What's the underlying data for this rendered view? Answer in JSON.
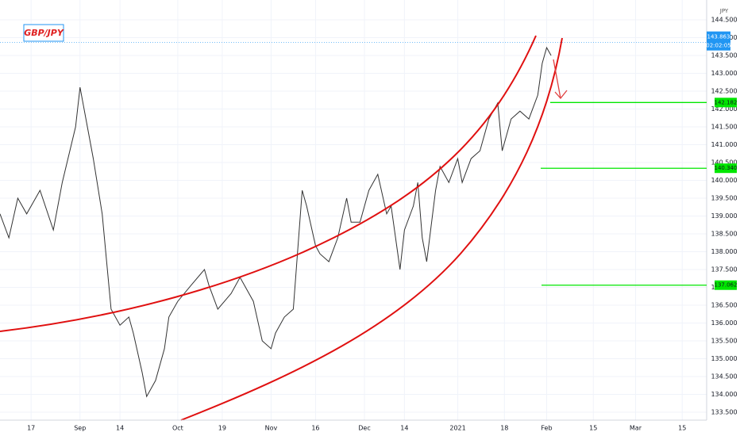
{
  "chart_data": {
    "type": "line",
    "title": "GBP/JPY",
    "currency": "JPY",
    "xlim": [
      0,
      159
    ],
    "xticks": [
      {
        "value": 7,
        "label": "17"
      },
      {
        "value": 18,
        "label": "Sep"
      },
      {
        "value": 27,
        "label": "14"
      },
      {
        "value": 40,
        "label": "Oct"
      },
      {
        "value": 50,
        "label": "19"
      },
      {
        "value": 61,
        "label": "Nov"
      },
      {
        "value": 71,
        "label": "16"
      },
      {
        "value": 82,
        "label": "Dec"
      },
      {
        "value": 91,
        "label": "14"
      },
      {
        "value": 103,
        "label": "2021"
      },
      {
        "value": 113.5,
        "label": "18"
      },
      {
        "value": 123,
        "label": "Feb"
      },
      {
        "value": 133.5,
        "label": "15"
      },
      {
        "value": 143,
        "label": "Mar"
      },
      {
        "value": 153.5,
        "label": "15"
      }
    ],
    "ylim": [
      133.278,
      145.056
    ],
    "yticks": [
      {
        "value": 133.5,
        "label": "133.500"
      },
      {
        "value": 134,
        "label": "134.000"
      },
      {
        "value": 134.5,
        "label": "134.500"
      },
      {
        "value": 135,
        "label": "135.000"
      },
      {
        "value": 135.5,
        "label": "135.500"
      },
      {
        "value": 136,
        "label": "136.000"
      },
      {
        "value": 136.5,
        "label": "136.500"
      },
      {
        "value": 137,
        "label": "137.000"
      },
      {
        "value": 137.5,
        "label": "137.500"
      },
      {
        "value": 138,
        "label": "138.000"
      },
      {
        "value": 138.5,
        "label": "138.500"
      },
      {
        "value": 139,
        "label": "139.000"
      },
      {
        "value": 139.5,
        "label": "139.500"
      },
      {
        "value": 140,
        "label": "140.000"
      },
      {
        "value": 140.5,
        "label": "140.500"
      },
      {
        "value": 141,
        "label": "141.000"
      },
      {
        "value": 141.5,
        "label": "141.500"
      },
      {
        "value": 142,
        "label": "142.000"
      },
      {
        "value": 142.5,
        "label": "142.500"
      },
      {
        "value": 143,
        "label": "143.000"
      },
      {
        "value": 143.5,
        "label": "143.500"
      },
      {
        "value": 144,
        "label": "144.000"
      },
      {
        "value": 144.5,
        "label": "144.500"
      }
    ],
    "grid": true,
    "series": [
      {
        "color": "#333333",
        "x": [
          0,
          2,
          4,
          6,
          9,
          12,
          14,
          17,
          18,
          20,
          21,
          23,
          24,
          25,
          27,
          29,
          30,
          32,
          33,
          35,
          37,
          38,
          40,
          43,
          46,
          47,
          49,
          52,
          54,
          57,
          59,
          61,
          62,
          64,
          66,
          68,
          69,
          71,
          72,
          74,
          76,
          78,
          79,
          81,
          83,
          85,
          87,
          88,
          90,
          91,
          93,
          94,
          95,
          96,
          98,
          99,
          101,
          103,
          104,
          106,
          108,
          110,
          112,
          113,
          115,
          117,
          119,
          121,
          122,
          123,
          124
        ],
        "values": [
          139.06,
          138.39,
          139.5,
          139.06,
          139.72,
          138.61,
          139.94,
          141.5,
          142.61,
          141.28,
          140.61,
          139.06,
          137.72,
          136.39,
          135.94,
          136.17,
          135.72,
          134.61,
          133.94,
          134.39,
          135.28,
          136.17,
          136.61,
          137.06,
          137.5,
          137.06,
          136.39,
          136.83,
          137.28,
          136.61,
          135.5,
          135.28,
          135.72,
          136.17,
          136.39,
          139.72,
          139.28,
          138.17,
          137.94,
          137.72,
          138.39,
          139.5,
          138.83,
          138.83,
          139.72,
          140.17,
          139.06,
          139.28,
          137.5,
          138.61,
          139.28,
          139.94,
          138.39,
          137.72,
          139.72,
          140.39,
          139.94,
          140.61,
          139.94,
          140.61,
          140.83,
          141.72,
          142.17,
          140.83,
          141.72,
          141.94,
          141.72,
          142.39,
          143.28,
          143.72,
          143.5
        ]
      }
    ],
    "last_price": {
      "value": 143.863,
      "label": "143.863",
      "color": "#2196f3"
    },
    "countdown": "02:02:05",
    "levels": {
      "color": "#00e600",
      "values": [
        142.182,
        140.34,
        137.062
      ],
      "value_labels": [
        "142.182",
        "140.340",
        "137.062"
      ]
    }
  }
}
